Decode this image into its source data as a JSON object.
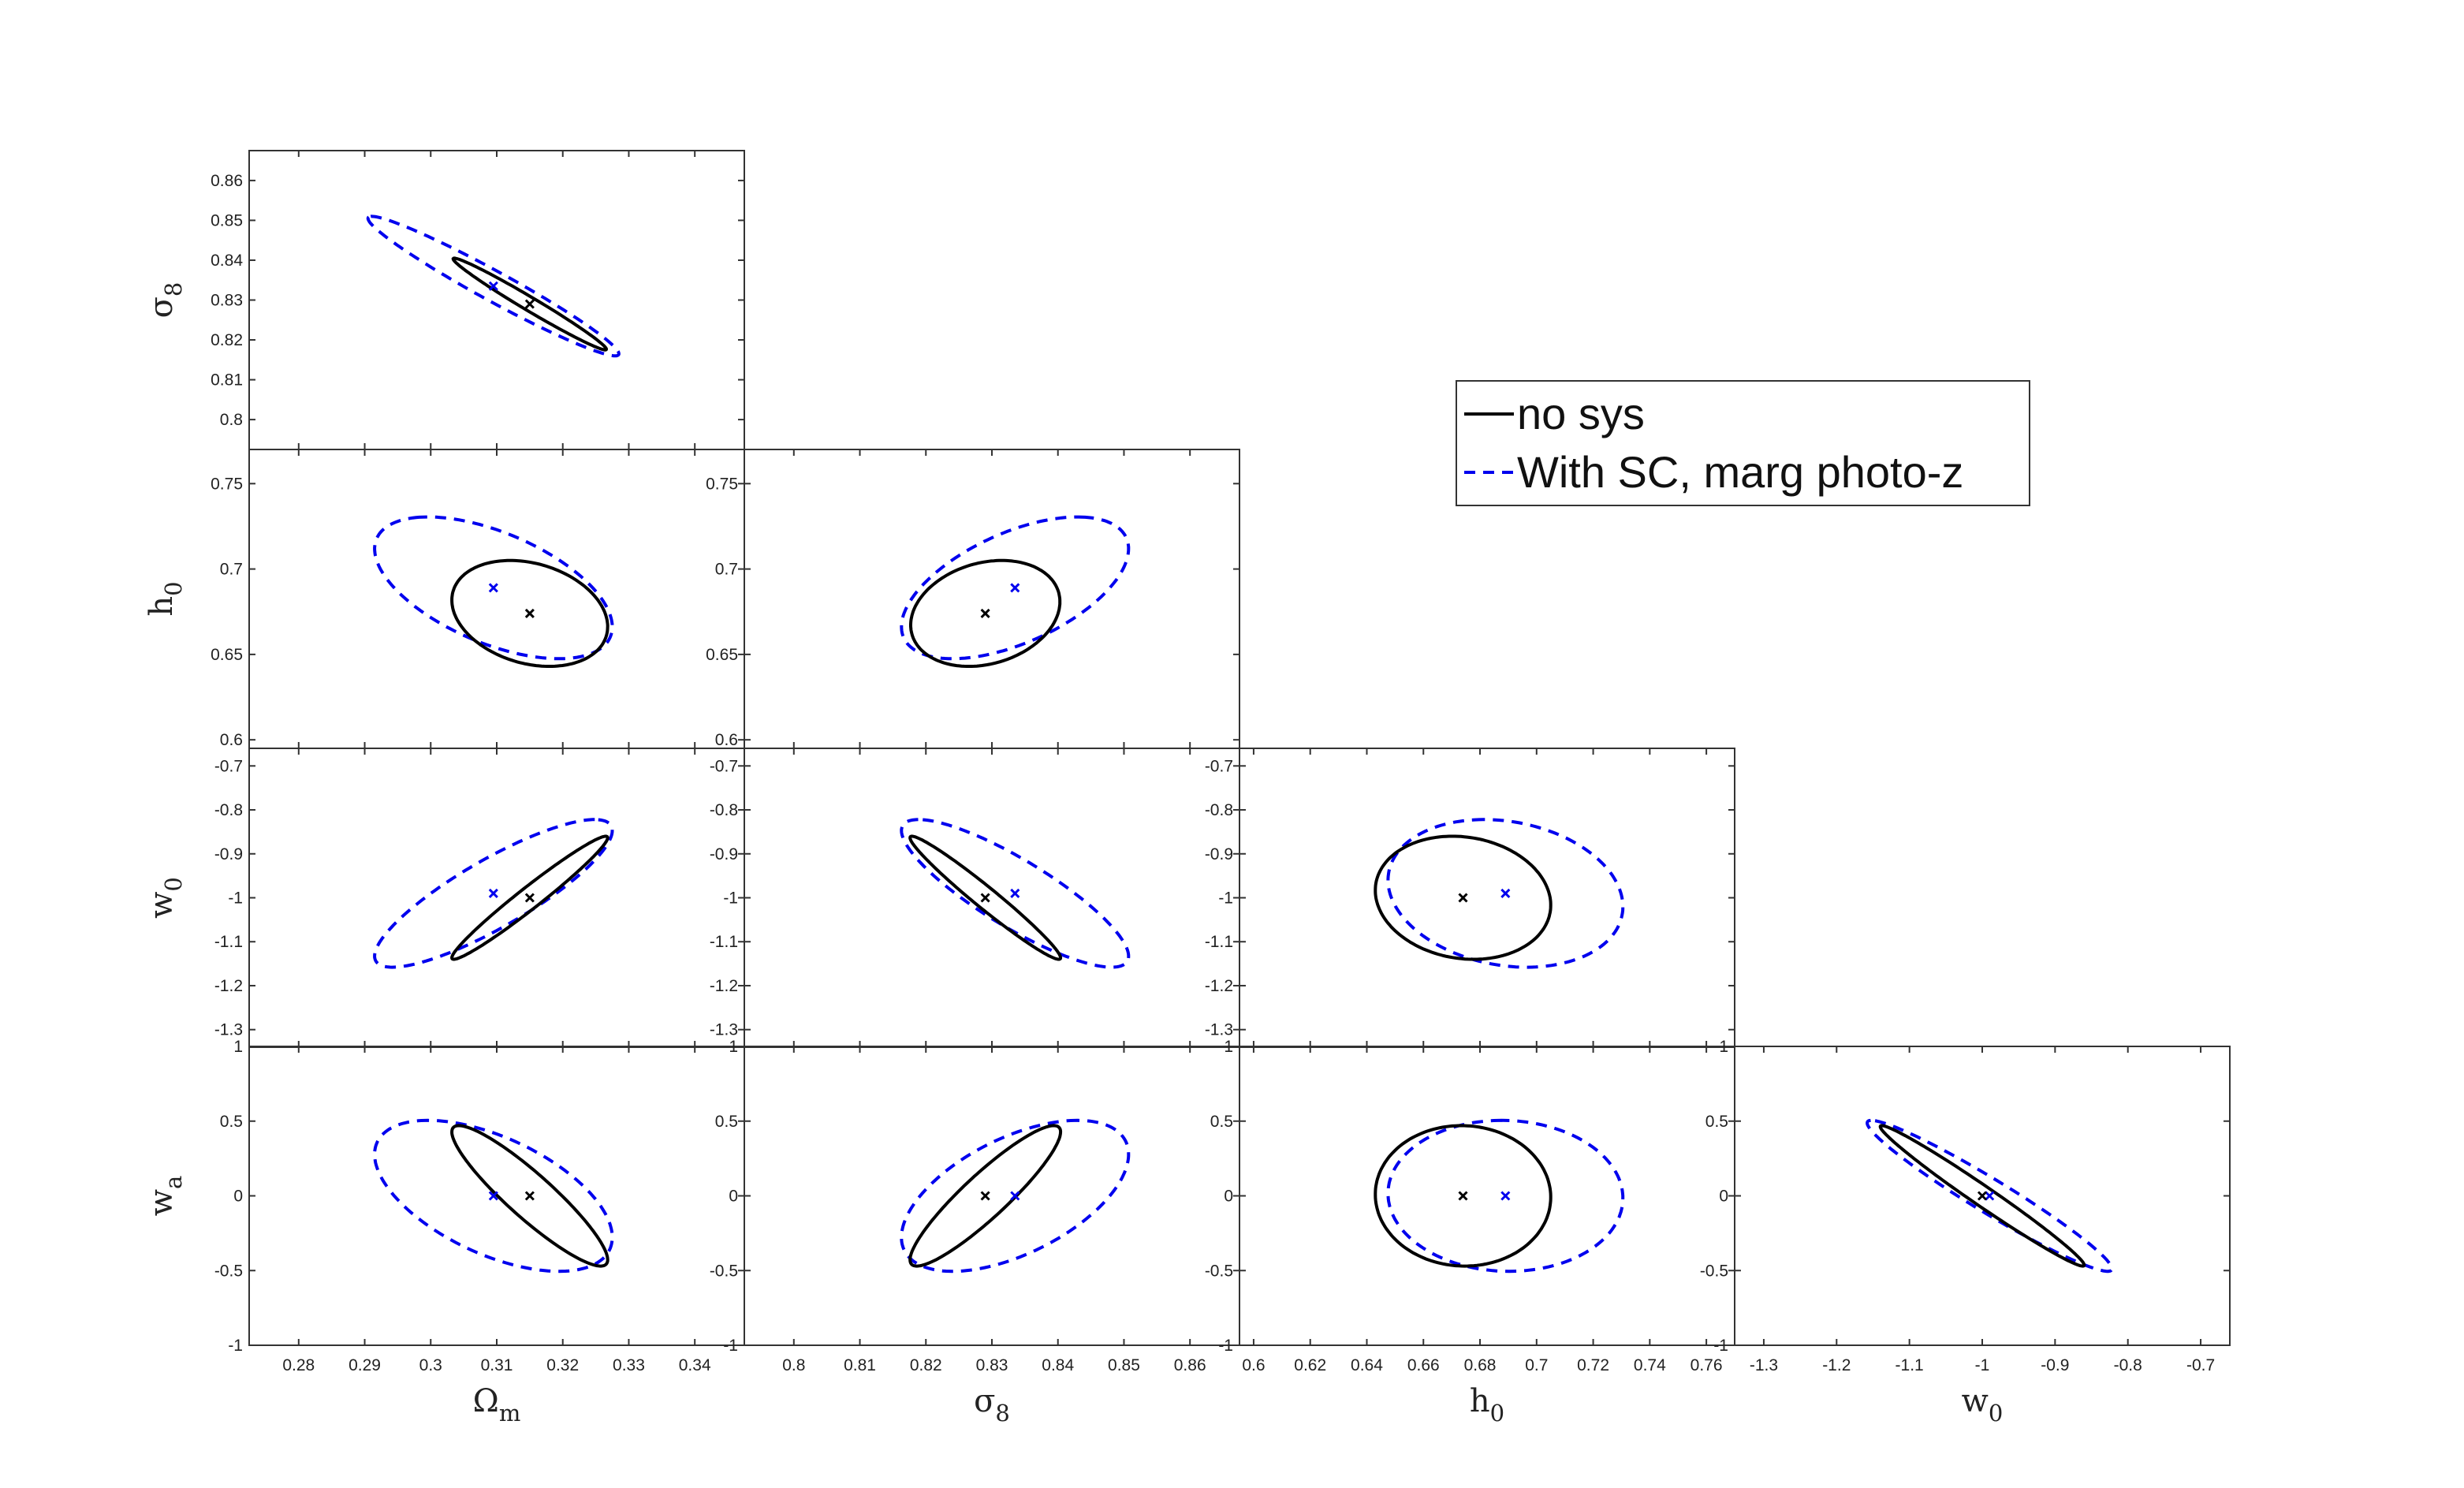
{
  "chart_data": {
    "type": "contour",
    "legend": {
      "placement": "upper-right",
      "entries": [
        {
          "label": "no sys",
          "color": "#000000",
          "style": "solid"
        },
        {
          "label": "With SC, marg photo-z",
          "color": "#0000ee",
          "style": "dashed"
        }
      ]
    },
    "params": [
      {
        "id": "om",
        "symbol": "Ω",
        "sub": "m",
        "range": [
          0.2725,
          0.3475
        ],
        "ticks": [
          0.28,
          0.29,
          0.3,
          0.31,
          0.32,
          0.33,
          0.34
        ],
        "tick_labels": [
          "0.28",
          "0.29",
          "0.3",
          "0.31",
          "0.32",
          "0.33",
          "0.34"
        ]
      },
      {
        "id": "s8",
        "symbol": "σ",
        "sub": "8",
        "range": [
          0.7925,
          0.8675
        ],
        "ticks": [
          0.8,
          0.81,
          0.82,
          0.83,
          0.84,
          0.85,
          0.86
        ],
        "tick_labels": [
          "0.8",
          "0.81",
          "0.82",
          "0.83",
          "0.84",
          "0.85",
          "0.86"
        ]
      },
      {
        "id": "h0",
        "symbol": "h",
        "sub": "0",
        "range": [
          0.595,
          0.77
        ],
        "ticks": [
          0.6,
          0.62,
          0.64,
          0.66,
          0.68,
          0.7,
          0.72,
          0.74,
          0.76
        ],
        "tick_labels": [
          "0.6",
          "0.62",
          "0.64",
          "0.66",
          "0.68",
          "0.7",
          "0.72",
          "0.74",
          "0.76"
        ],
        "y_ticks": [
          0.6,
          0.65,
          0.7,
          0.75
        ],
        "y_tick_labels": [
          "0.6",
          "0.65",
          "0.7",
          "0.75"
        ]
      },
      {
        "id": "w0",
        "symbol": "w",
        "sub": "0",
        "range": [
          -1.34,
          -0.66
        ],
        "ticks": [
          -1.3,
          -1.2,
          -1.1,
          -1.0,
          -0.9,
          -0.8,
          -0.7
        ],
        "tick_labels": [
          "-1.3",
          "-1.2",
          "-1.1",
          "-1",
          "-0.9",
          "-0.8",
          "-0.7"
        ]
      },
      {
        "id": "wa",
        "symbol": "w",
        "sub": "a",
        "range": [
          -1,
          1
        ],
        "ticks": [
          -1,
          -0.5,
          0,
          0.5,
          1
        ],
        "tick_labels": [
          "-1",
          "-0.5",
          "0",
          "0.5",
          "1"
        ]
      }
    ],
    "fiducial": {
      "om": 0.315,
      "s8": 0.829,
      "h0": 0.674,
      "w0": -1.0,
      "wa": 0.0
    },
    "shifted_center": {
      "om": 0.3095,
      "s8": 0.8335,
      "h0": 0.689,
      "w0": -0.99,
      "wa": 0.0
    },
    "panels": [
      {
        "x": "om",
        "y": "s8",
        "nosys": {
          "cx": 0.315,
          "cy": 0.829,
          "sx": 0.0116,
          "sy": 0.0115,
          "rho": -0.985
        },
        "sc": {
          "cx": 0.3095,
          "cy": 0.8335,
          "sx": 0.019,
          "sy": 0.0175,
          "rho": -0.97
        }
      },
      {
        "x": "om",
        "y": "h0",
        "nosys": {
          "cx": 0.315,
          "cy": 0.674,
          "sx": 0.0118,
          "sy": 0.031,
          "rho": -0.25
        },
        "sc": {
          "cx": 0.3095,
          "cy": 0.689,
          "sx": 0.018,
          "sy": 0.0415,
          "rho": -0.55
        }
      },
      {
        "x": "s8",
        "y": "h0",
        "nosys": {
          "cx": 0.829,
          "cy": 0.674,
          "sx": 0.0113,
          "sy": 0.031,
          "rho": 0.22
        },
        "sc": {
          "cx": 0.8335,
          "cy": 0.689,
          "sx": 0.0172,
          "sy": 0.0415,
          "rho": 0.55
        }
      },
      {
        "x": "om",
        "y": "w0",
        "nosys": {
          "cx": 0.315,
          "cy": -1.0,
          "sx": 0.0118,
          "sy": 0.14,
          "rho": 0.975
        },
        "sc": {
          "cx": 0.3095,
          "cy": -0.99,
          "sx": 0.018,
          "sy": 0.168,
          "rho": 0.85
        }
      },
      {
        "x": "s8",
        "y": "w0",
        "nosys": {
          "cx": 0.829,
          "cy": -1.0,
          "sx": 0.0114,
          "sy": 0.14,
          "rho": -0.975
        },
        "sc": {
          "cx": 0.8335,
          "cy": -0.99,
          "sx": 0.0172,
          "sy": 0.168,
          "rho": -0.85
        }
      },
      {
        "x": "h0",
        "y": "w0",
        "nosys": {
          "cx": 0.674,
          "cy": -1.0,
          "sx": 0.031,
          "sy": 0.14,
          "rho": -0.12
        },
        "sc": {
          "cx": 0.689,
          "cy": -0.99,
          "sx": 0.0415,
          "sy": 0.168,
          "rho": -0.18
        }
      },
      {
        "x": "om",
        "y": "wa",
        "nosys": {
          "cx": 0.315,
          "cy": 0.0,
          "sx": 0.0118,
          "sy": 0.47,
          "rho": -0.91
        },
        "sc": {
          "cx": 0.3095,
          "cy": 0.0,
          "sx": 0.018,
          "sy": 0.505,
          "rho": -0.55
        }
      },
      {
        "x": "s8",
        "y": "wa",
        "nosys": {
          "cx": 0.829,
          "cy": 0.0,
          "sx": 0.0114,
          "sy": 0.47,
          "rho": 0.91
        },
        "sc": {
          "cx": 0.8335,
          "cy": 0.0,
          "sx": 0.0172,
          "sy": 0.505,
          "rho": 0.55
        }
      },
      {
        "x": "h0",
        "y": "wa",
        "nosys": {
          "cx": 0.674,
          "cy": 0.0,
          "sx": 0.031,
          "sy": 0.47,
          "rho": -0.02
        },
        "sc": {
          "cx": 0.689,
          "cy": 0.0,
          "sx": 0.0415,
          "sy": 0.505,
          "rho": -0.03
        }
      },
      {
        "x": "w0",
        "y": "wa",
        "nosys": {
          "cx": -1.0,
          "cy": 0.0,
          "sx": 0.14,
          "sy": 0.47,
          "rho": -0.985
        },
        "sc": {
          "cx": -0.99,
          "cy": 0.0,
          "sx": 0.168,
          "sy": 0.505,
          "rho": -0.965
        }
      }
    ]
  }
}
